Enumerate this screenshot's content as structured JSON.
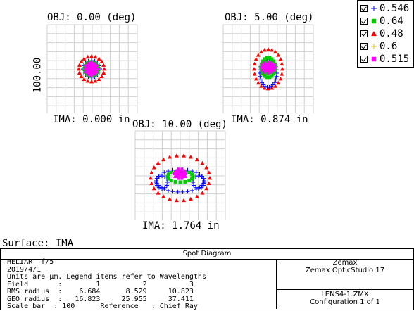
{
  "plots": [
    {
      "obj_label": "OBJ: 0.00 (deg)",
      "ima_label": "IMA: 0.000 in"
    },
    {
      "obj_label": "OBJ: 5.00 (deg)",
      "ima_label": "IMA: 0.874 in"
    },
    {
      "obj_label": "OBJ: 10.00 (deg)",
      "ima_label": "IMA: 1.764 in"
    }
  ],
  "scale_label": "100.00",
  "legend": [
    {
      "label": "0.546",
      "symbol": "plus",
      "color": "#0000ff"
    },
    {
      "label": "0.64",
      "symbol": "square",
      "color": "#00cc00"
    },
    {
      "label": "0.48",
      "symbol": "triangle",
      "color": "#ff0000"
    },
    {
      "label": "0.6",
      "symbol": "plus",
      "color": "#e6c800"
    },
    {
      "label": "0.515",
      "symbol": "square",
      "color": "#ff00ff"
    }
  ],
  "surface_label": "Surface: IMA",
  "footer": {
    "title": "Spot Diagram",
    "left_lines": [
      "HELIAR  f/5",
      "2019/4/1",
      "Units are µm. Legend items refer to Wavelengths",
      "Field       :        1          2          3",
      "RMS radius  :    6.684      8.529     10.823",
      "GEO radius  :   16.823     25.955     37.411",
      "Scale bar  : 100      Reference   : Chief Ray"
    ],
    "company": "Zemax",
    "product": "Zemax OpticStudio 17",
    "file": "LENS4-1.ZMX",
    "config": "Configuration 1 of 1"
  }
}
